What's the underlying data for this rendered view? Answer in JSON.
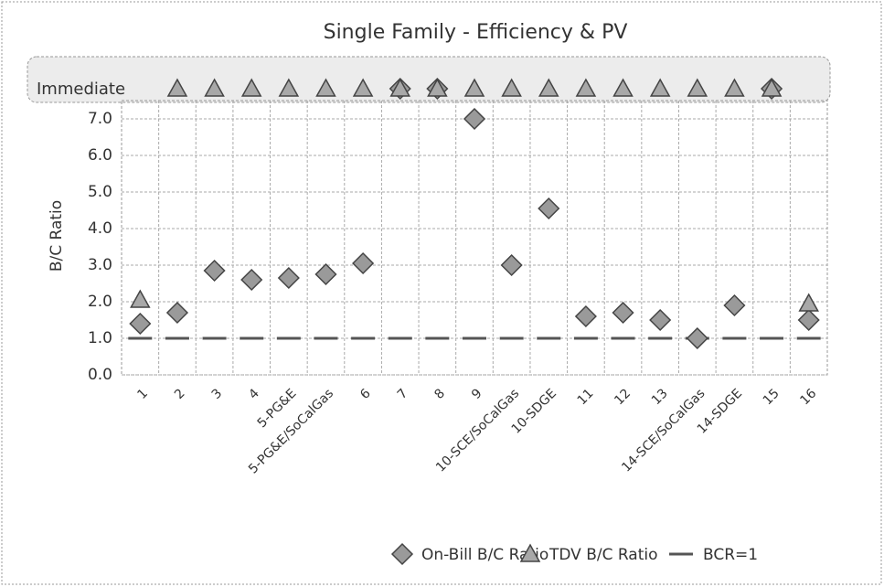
{
  "chart_data": {
    "type": "scatter",
    "title": "Single Family - Efficiency & PV",
    "y_label": "B/C Ratio",
    "y_category": "Immediate",
    "categories": [
      "1",
      "2",
      "3",
      "4",
      "5-PG&E",
      "5-PG&E/SoCalGas",
      "6",
      "7",
      "8",
      "9",
      "10-SCE/SoCalGas",
      "10-SDGE",
      "11",
      "12",
      "13",
      "14-SCE/SoCalGas",
      "14-SDGE",
      "15",
      "16"
    ],
    "series": [
      {
        "name": "On-Bill B/C Ratio",
        "marker": "diamond",
        "color": "#9a9a9a",
        "values": [
          1.4,
          1.7,
          2.85,
          2.6,
          2.65,
          2.75,
          3.05,
          "Immediate",
          "Immediate",
          7.0,
          3.0,
          4.55,
          1.6,
          1.7,
          1.5,
          1.0,
          1.9,
          "Immediate",
          1.5
        ]
      },
      {
        "name": "TDV B/C Ratio",
        "marker": "triangle",
        "color": "#a8a8a8",
        "values": [
          2.05,
          "Immediate",
          "Immediate",
          "Immediate",
          "Immediate",
          "Immediate",
          "Immediate",
          "Immediate",
          "Immediate",
          "Immediate",
          "Immediate",
          "Immediate",
          "Immediate",
          "Immediate",
          "Immediate",
          "Immediate",
          "Immediate",
          "Immediate",
          1.95
        ]
      },
      {
        "name": "BCR=1",
        "marker": "dash",
        "color": "#555555",
        "values": [
          1,
          1,
          1,
          1,
          1,
          1,
          1,
          1,
          1,
          1,
          1,
          1,
          1,
          1,
          1,
          1,
          1,
          1,
          1
        ]
      }
    ],
    "ylim": [
      0,
      7.5
    ],
    "yticks": [
      {
        "value": 0,
        "label": "0.0"
      },
      {
        "value": 1,
        "label": "1.0"
      },
      {
        "value": 2,
        "label": "2.0"
      },
      {
        "value": 3,
        "label": "3.0"
      },
      {
        "value": 4,
        "label": "4.0"
      },
      {
        "value": 5,
        "label": "5.0"
      },
      {
        "value": 6,
        "label": "6.0"
      },
      {
        "value": 7,
        "label": "7.0"
      }
    ],
    "grid": true
  }
}
